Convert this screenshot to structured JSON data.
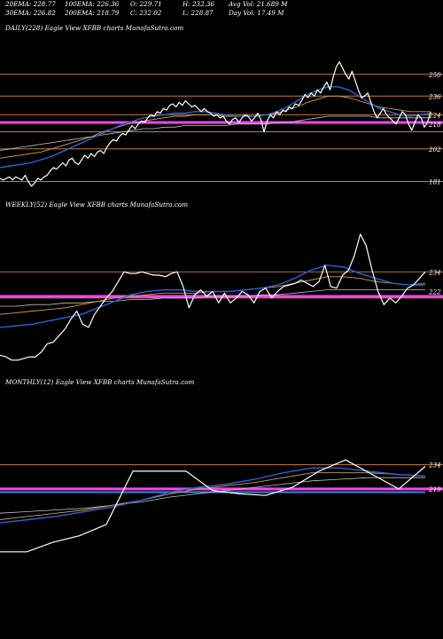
{
  "header": {
    "ema20": "20EMA: 228.77",
    "ema100": "100EMA: 226.36",
    "open": "O: 229.71",
    "high": "H: 232.36",
    "avg_vol": "Avg Vol: 21.689 M",
    "ema30": "30EMA: 226.82",
    "ema200": "200EMA: 218.79",
    "close": "C: 232.02",
    "low": "L: 228.87",
    "day_vol": "Day Vol: 17.49 M"
  },
  "colors": {
    "background": "#000000",
    "price": "#ffffff",
    "ema_fast": "#2a62d6",
    "ema_mid": "#c8a050",
    "ema_slow": "#c0c0c0",
    "level_line": "#c8783c",
    "highlight_level": "#ff40ff",
    "support_level": "#3a8ad8"
  },
  "chart_data": [
    {
      "type": "line",
      "title": "DAILY(228) Eagle  View  XFBB charts MunafaSutra.com",
      "ylim": [
        175,
        275
      ],
      "y_ticks": [
        250,
        236,
        224,
        218,
        202,
        181
      ],
      "levels": [
        250,
        236,
        224,
        213,
        202,
        181
      ],
      "highlight_level": 219,
      "price": [
        183,
        182,
        183,
        184,
        182,
        184,
        183,
        182,
        185,
        181,
        178,
        180,
        183,
        182,
        184,
        185,
        188,
        190,
        189,
        191,
        193,
        191,
        195,
        196,
        193,
        192,
        195,
        198,
        196,
        199,
        197,
        200,
        201,
        199,
        203,
        206,
        208,
        207,
        210,
        212,
        211,
        214,
        217,
        215,
        218,
        220,
        219,
        222,
        224,
        223,
        226,
        225,
        228,
        227,
        230,
        231,
        229,
        232,
        230,
        233,
        231,
        229,
        230,
        228,
        226,
        228,
        226,
        225,
        223,
        224,
        222,
        223,
        220,
        218,
        221,
        222,
        219,
        222,
        224,
        223,
        220,
        222,
        225,
        221,
        213,
        220,
        224,
        222,
        226,
        224,
        227,
        226,
        229,
        228,
        231,
        230,
        233,
        237,
        235,
        238,
        236,
        240,
        238,
        242,
        245,
        240,
        248,
        255,
        258,
        254,
        250,
        247,
        252,
        246,
        240,
        235,
        236,
        238,
        232,
        226,
        222,
        225,
        228,
        224,
        222,
        220,
        218,
        222,
        226,
        224,
        218,
        214,
        219,
        224,
        222,
        216,
        219,
        226
      ],
      "ema_fast": [
        190,
        191,
        192,
        193,
        195,
        197,
        200,
        203,
        206,
        209,
        212,
        215,
        218,
        220,
        222,
        223,
        224,
        225,
        225,
        226,
        226,
        225,
        224,
        223,
        223,
        223,
        224,
        226,
        229,
        233,
        237,
        240,
        242,
        242,
        240,
        236,
        232,
        228,
        226,
        224,
        223,
        224,
        225
      ],
      "ema_mid": [
        196,
        197,
        198,
        199,
        200,
        202,
        204,
        206,
        208,
        210,
        213,
        215,
        217,
        219,
        220,
        221,
        222,
        223,
        223,
        224,
        224,
        224,
        223,
        223,
        223,
        223,
        224,
        225,
        227,
        229,
        232,
        234,
        236,
        236,
        235,
        233,
        231,
        229,
        228,
        227,
        226,
        226,
        226
      ],
      "ema_slow": [
        201,
        202,
        203,
        204,
        205,
        206,
        207,
        208,
        209,
        210,
        211,
        212,
        213,
        214,
        215,
        215,
        216,
        216,
        217,
        217,
        217,
        217,
        217,
        218,
        218,
        218,
        218,
        219,
        219,
        220,
        221,
        222,
        223,
        223,
        223,
        223,
        223,
        222,
        222,
        222,
        222,
        222,
        222
      ]
    },
    {
      "type": "line",
      "title": "WEEKLY(52) Eagle  View  XFBB charts MunafaSutra.com",
      "ylim": [
        175,
        270
      ],
      "y_ticks": [
        234,
        222
      ],
      "levels": [
        234,
        218
      ],
      "highlight_level": 219,
      "price": [
        183,
        182,
        180,
        180,
        181,
        182,
        182,
        185,
        190,
        191,
        195,
        199,
        205,
        210,
        202,
        200,
        208,
        213,
        218,
        222,
        228,
        234,
        233,
        233,
        234,
        233,
        232,
        232,
        231,
        233,
        234,
        225,
        212,
        220,
        223,
        219,
        222,
        215,
        221,
        215,
        218,
        222,
        220,
        215,
        222,
        224,
        218,
        222,
        225,
        226,
        227,
        229,
        227,
        225,
        228,
        238,
        225,
        224,
        232,
        235,
        244,
        257,
        250,
        235,
        222,
        214,
        218,
        215,
        219,
        224,
        226,
        230,
        234
      ],
      "ema_fast": [
        200,
        201,
        202,
        204,
        206,
        208,
        212,
        216,
        220,
        222,
        223,
        223,
        222,
        222,
        222,
        223,
        224,
        226,
        230,
        235,
        238,
        237,
        233,
        230,
        227,
        226,
        227
      ],
      "ema_mid": [
        208,
        209,
        210,
        211,
        212,
        214,
        216,
        218,
        219,
        220,
        221,
        221,
        221,
        222,
        222,
        223,
        224,
        225,
        227,
        229,
        231,
        231,
        230,
        228,
        227,
        226,
        226
      ],
      "ema_slow": [
        213,
        213,
        214,
        214,
        215,
        215,
        216,
        216,
        217,
        217,
        218,
        218,
        218,
        219,
        219,
        219,
        220,
        220,
        221,
        222,
        223,
        223,
        223,
        223,
        223,
        223,
        223
      ]
    },
    {
      "type": "line",
      "title": "MONTHLY(12) Eagle  View  XFBB charts MunafaSutra.com",
      "ylim": [
        170,
        280
      ],
      "y_ticks": [
        234,
        219
      ],
      "levels": [
        234
      ],
      "highlight_level": 219,
      "support_level": 217,
      "price": [
        180,
        180,
        186,
        190,
        197,
        230,
        230,
        230,
        218,
        216,
        215,
        220,
        230,
        237,
        228,
        219,
        233
      ],
      "ema_fast": [
        198,
        200,
        202,
        205,
        208,
        212,
        217,
        220,
        222,
        225,
        229,
        232,
        232,
        230,
        228,
        227
      ],
      "ema_mid": [
        200,
        202,
        204,
        206,
        209,
        212,
        216,
        219,
        221,
        223,
        226,
        229,
        229,
        229,
        228,
        227
      ],
      "ema_slow": [
        204,
        205,
        206,
        207,
        209,
        211,
        214,
        216,
        218,
        220,
        222,
        224,
        225,
        226,
        226,
        226
      ]
    }
  ]
}
